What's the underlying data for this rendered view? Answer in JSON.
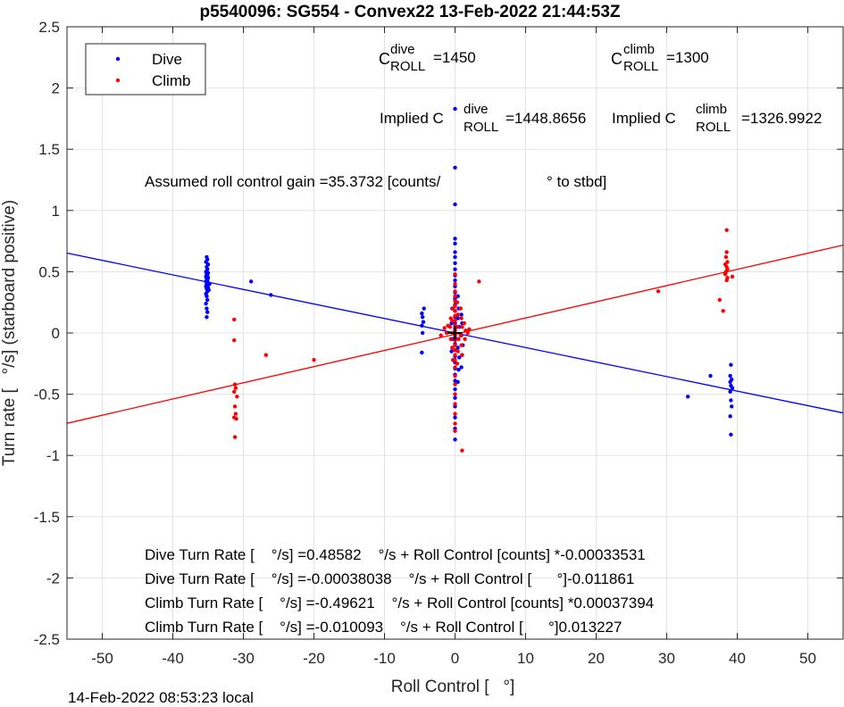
{
  "chart_data": {
    "type": "scatter",
    "title": "p5540096: SG554 - Convex22 13-Feb-2022 21:44:53Z",
    "xlabel": "Roll Control [   °]",
    "ylabel": "Turn rate [   °/s] (starboard positive)",
    "xlim": [
      -55,
      55
    ],
    "ylim": [
      -2.5,
      2.5
    ],
    "xticks": [
      -50,
      -40,
      -30,
      -20,
      -10,
      0,
      10,
      20,
      30,
      40,
      50
    ],
    "yticks": [
      -2.5,
      -2,
      -1.5,
      -1,
      -0.5,
      0,
      0.5,
      1,
      1.5,
      2,
      2.5
    ],
    "grid": true,
    "legend_position": "top-left",
    "series": [
      {
        "name": "Dive",
        "color": "#0000ff",
        "points": [
          [
            -35.2,
            0.62
          ],
          [
            -35.1,
            0.6
          ],
          [
            -35.3,
            0.58
          ],
          [
            -35.0,
            0.56
          ],
          [
            -35.2,
            0.54
          ],
          [
            -35.1,
            0.52
          ],
          [
            -35.3,
            0.5
          ],
          [
            -35.0,
            0.49
          ],
          [
            -35.2,
            0.48
          ],
          [
            -35.1,
            0.47
          ],
          [
            -35.3,
            0.46
          ],
          [
            -35.0,
            0.45
          ],
          [
            -35.2,
            0.44
          ],
          [
            -35.1,
            0.43
          ],
          [
            -35.3,
            0.42
          ],
          [
            -35.0,
            0.41
          ],
          [
            -35.2,
            0.4
          ],
          [
            -35.1,
            0.39
          ],
          [
            -35.3,
            0.38
          ],
          [
            -35.0,
            0.37
          ],
          [
            -35.2,
            0.36
          ],
          [
            -35.1,
            0.34
          ],
          [
            -35.3,
            0.32
          ],
          [
            -35.2,
            0.3
          ],
          [
            -35.1,
            0.27
          ],
          [
            -35.3,
            0.24
          ],
          [
            -35.2,
            0.2
          ],
          [
            -35.1,
            0.17
          ],
          [
            -35.2,
            0.13
          ],
          [
            -34.8,
            0.4
          ],
          [
            -34.9,
            0.35
          ],
          [
            -28.9,
            0.42
          ],
          [
            -26.1,
            0.31
          ],
          [
            -4.7,
            0.16
          ],
          [
            -4.6,
            0.13
          ],
          [
            -4.5,
            0.09
          ],
          [
            -4.7,
            0.06
          ],
          [
            -4.6,
            0.0
          ],
          [
            -4.4,
            0.2
          ],
          [
            -4.7,
            -0.16
          ],
          [
            0.0,
            1.83
          ],
          [
            0.0,
            1.35
          ],
          [
            0.0,
            1.05
          ],
          [
            0.0,
            0.77
          ],
          [
            0.0,
            0.73
          ],
          [
            0.0,
            0.66
          ],
          [
            0.0,
            0.62
          ],
          [
            0.0,
            0.57
          ],
          [
            0.0,
            0.52
          ],
          [
            0.0,
            0.47
          ],
          [
            0.0,
            0.43
          ],
          [
            0.0,
            0.38
          ],
          [
            0.0,
            0.33
          ],
          [
            0.0,
            0.28
          ],
          [
            0.0,
            0.23
          ],
          [
            0.0,
            0.18
          ],
          [
            0.0,
            0.13
          ],
          [
            0.0,
            0.08
          ],
          [
            0.0,
            0.04
          ],
          [
            0.0,
            -0.04
          ],
          [
            0.0,
            -0.09
          ],
          [
            0.0,
            -0.14
          ],
          [
            0.0,
            -0.19
          ],
          [
            0.0,
            -0.24
          ],
          [
            0.0,
            -0.29
          ],
          [
            0.0,
            -0.34
          ],
          [
            0.0,
            -0.39
          ],
          [
            0.0,
            -0.46
          ],
          [
            0.0,
            -0.53
          ],
          [
            0.0,
            -0.6
          ],
          [
            0.0,
            -0.69
          ],
          [
            0.0,
            -0.78
          ],
          [
            0.0,
            -0.87
          ],
          [
            0.4,
            0.3
          ],
          [
            0.5,
            0.2
          ],
          [
            0.4,
            0.12
          ],
          [
            0.6,
            0.05
          ],
          [
            0.5,
            -0.05
          ],
          [
            0.4,
            -0.12
          ],
          [
            0.6,
            -0.2
          ],
          [
            0.5,
            -0.3
          ],
          [
            0.4,
            -0.4
          ],
          [
            0.9,
            0.15
          ],
          [
            1.0,
            0.08
          ],
          [
            0.9,
            -0.02
          ],
          [
            1.1,
            -0.1
          ],
          [
            1.0,
            -0.18
          ],
          [
            0.9,
            -0.28
          ],
          [
            -0.4,
            0.2
          ],
          [
            -0.5,
            0.08
          ],
          [
            -0.4,
            -0.05
          ],
          [
            -0.5,
            -0.15
          ],
          [
            33.0,
            -0.52
          ],
          [
            36.2,
            -0.35
          ],
          [
            39.1,
            -0.26
          ],
          [
            39.0,
            -0.35
          ],
          [
            39.2,
            -0.38
          ],
          [
            39.0,
            -0.4
          ],
          [
            39.1,
            -0.43
          ],
          [
            39.3,
            -0.45
          ],
          [
            39.0,
            -0.48
          ],
          [
            39.1,
            -0.55
          ],
          [
            39.2,
            -0.6
          ],
          [
            39.0,
            -0.68
          ],
          [
            39.1,
            -0.83
          ]
        ]
      },
      {
        "name": "Climb",
        "color": "#ff0000",
        "points": [
          [
            -31.3,
            0.11
          ],
          [
            -31.3,
            -0.06
          ],
          [
            -31.2,
            -0.42
          ],
          [
            -31.1,
            -0.45
          ],
          [
            -31.3,
            -0.48
          ],
          [
            -30.9,
            -0.52
          ],
          [
            -31.2,
            -0.6
          ],
          [
            -31.1,
            -0.66
          ],
          [
            -31.3,
            -0.69
          ],
          [
            -31.0,
            -0.7
          ],
          [
            -31.2,
            -0.85
          ],
          [
            -26.8,
            -0.18
          ],
          [
            -20.0,
            -0.22
          ],
          [
            0.0,
            0.48
          ],
          [
            0.0,
            0.4
          ],
          [
            0.0,
            0.34
          ],
          [
            0.0,
            0.3
          ],
          [
            0.0,
            0.26
          ],
          [
            0.0,
            0.22
          ],
          [
            0.0,
            0.18
          ],
          [
            0.0,
            0.14
          ],
          [
            0.0,
            0.1
          ],
          [
            0.0,
            0.06
          ],
          [
            0.0,
            0.02
          ],
          [
            0.0,
            -0.02
          ],
          [
            0.0,
            -0.06
          ],
          [
            0.0,
            -0.1
          ],
          [
            0.0,
            -0.14
          ],
          [
            0.0,
            -0.18
          ],
          [
            0.0,
            -0.22
          ],
          [
            0.0,
            -0.28
          ],
          [
            0.0,
            -0.35
          ],
          [
            0.0,
            -0.42
          ],
          [
            0.0,
            -0.5
          ],
          [
            0.0,
            -0.58
          ],
          [
            0.0,
            -0.66
          ],
          [
            0.0,
            -0.74
          ],
          [
            0.0,
            -0.8
          ],
          [
            0.3,
            0.25
          ],
          [
            0.4,
            0.15
          ],
          [
            0.3,
            0.05
          ],
          [
            0.5,
            -0.05
          ],
          [
            0.4,
            -0.15
          ],
          [
            0.3,
            -0.25
          ],
          [
            -0.3,
            0.2
          ],
          [
            -0.4,
            0.1
          ],
          [
            -0.3,
            0.0
          ],
          [
            -0.4,
            -0.12
          ],
          [
            -0.3,
            -0.22
          ],
          [
            -0.6,
            0.12
          ],
          [
            -0.7,
            0.05
          ],
          [
            -0.6,
            -0.05
          ],
          [
            0.8,
            0.2
          ],
          [
            0.9,
            0.12
          ],
          [
            1.0,
            0.05
          ],
          [
            0.8,
            -0.02
          ],
          [
            0.9,
            -0.1
          ],
          [
            1.0,
            -0.18
          ],
          [
            1.3,
            0.08
          ],
          [
            1.5,
            0.02
          ],
          [
            1.4,
            -0.05
          ],
          [
            1.8,
            0.0
          ],
          [
            2.0,
            0.03
          ],
          [
            -1.0,
            0.06
          ],
          [
            -1.2,
            0.0
          ],
          [
            -1.5,
            0.04
          ],
          [
            -2.0,
            -0.02
          ],
          [
            1.0,
            -0.96
          ],
          [
            3.4,
            0.42
          ],
          [
            28.8,
            0.34
          ],
          [
            37.5,
            0.27
          ],
          [
            38.0,
            0.18
          ],
          [
            38.5,
            0.84
          ],
          [
            38.5,
            0.66
          ],
          [
            38.4,
            0.62
          ],
          [
            38.6,
            0.58
          ],
          [
            38.3,
            0.56
          ],
          [
            38.5,
            0.54
          ],
          [
            38.6,
            0.52
          ],
          [
            38.4,
            0.5
          ],
          [
            38.3,
            0.48
          ],
          [
            38.6,
            0.45
          ],
          [
            38.5,
            0.43
          ],
          [
            39.3,
            0.46
          ]
        ]
      }
    ],
    "fit_lines": [
      {
        "series": "Dive",
        "color": "#0000ff",
        "slope": -0.011861,
        "intercept": -0.00038038
      },
      {
        "series": "Climb",
        "color": "#ff0000",
        "slope": 0.013227,
        "intercept": -0.010093
      }
    ],
    "origin_marker": [
      0,
      0
    ]
  },
  "legend": {
    "dive": "Dive",
    "climb": "Climb"
  },
  "annotations": {
    "c_dive_c": "C",
    "c_dive_sup": "dive",
    "c_dive_sub": "ROLL",
    "c_dive_val": "=1450",
    "c_climb_c": "C",
    "c_climb_sup": "climb",
    "c_climb_sub": "ROLL",
    "c_climb_val": "=1300",
    "implied_dive_prefix": "Implied C",
    "implied_dive_sup": "dive",
    "implied_dive_sub": "ROLL",
    "implied_dive_val": "=1448.8656",
    "implied_climb_prefix": "Implied C",
    "implied_climb_sup": "climb",
    "implied_climb_sub": "ROLL",
    "implied_climb_val": "=1326.9922",
    "gain_text": "Assumed roll control gain =35.3732 [counts/",
    "gain_suffix": "° to stbd]",
    "fit1": "Dive Turn Rate [    °/s] =0.48582    °/s + Roll Control [counts] *-0.00033531",
    "fit2": "Dive Turn Rate [    °/s] =-0.00038038    °/s + Roll Control [      °]-0.011861",
    "fit3": "Climb Turn Rate [    °/s] =-0.49621    °/s + Roll Control [counts] *0.00037394",
    "fit4": "Climb Turn Rate [    °/s] =-0.010093    °/s + Roll Control [      °]0.013227"
  },
  "footer": {
    "timestamp": "14-Feb-2022 08:53:23 local"
  }
}
